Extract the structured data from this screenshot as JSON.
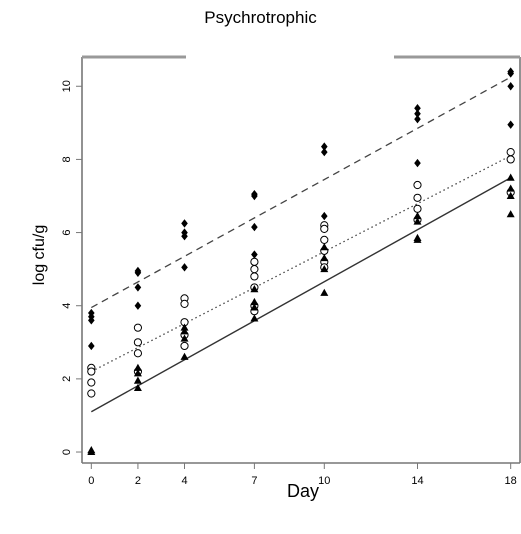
{
  "chart_data": {
    "type": "scatter",
    "title": "Psychrotrophic",
    "xlabel": "Day",
    "ylabel": "log cfu/g",
    "x_ticks": [
      0,
      2,
      4,
      7,
      10,
      14,
      18
    ],
    "y_ticks": [
      0,
      2,
      4,
      6,
      8,
      10
    ],
    "xlim": [
      -0.4,
      18.4
    ],
    "ylim": [
      -0.3,
      10.8
    ],
    "series": [
      {
        "marker": "filled-diamond",
        "line": "dashed",
        "color": "#000000",
        "fit": [
          [
            0,
            3.95
          ],
          [
            18,
            10.25
          ]
        ],
        "points": [
          [
            0,
            3.8
          ],
          [
            0,
            3.7
          ],
          [
            0,
            3.6
          ],
          [
            0,
            2.9
          ],
          [
            2,
            4.95
          ],
          [
            2,
            4.9
          ],
          [
            2,
            4.5
          ],
          [
            2,
            4.0
          ],
          [
            4,
            6.25
          ],
          [
            4,
            6.0
          ],
          [
            4,
            5.9
          ],
          [
            4,
            5.05
          ],
          [
            7,
            7.05
          ],
          [
            7,
            7.0
          ],
          [
            7,
            6.15
          ],
          [
            7,
            5.4
          ],
          [
            10,
            8.35
          ],
          [
            10,
            8.2
          ],
          [
            10,
            6.45
          ],
          [
            10,
            6.1
          ],
          [
            14,
            9.4
          ],
          [
            14,
            9.25
          ],
          [
            14,
            9.1
          ],
          [
            14,
            7.9
          ],
          [
            18,
            10.4
          ],
          [
            18,
            10.35
          ],
          [
            18,
            10.0
          ],
          [
            18,
            8.95
          ]
        ]
      },
      {
        "marker": "open-circle",
        "line": "dotted",
        "color": "#000000",
        "fit": [
          [
            0,
            2.2
          ],
          [
            18,
            8.1
          ]
        ],
        "points": [
          [
            0,
            2.3
          ],
          [
            0,
            2.2
          ],
          [
            0,
            1.9
          ],
          [
            0,
            1.6
          ],
          [
            2,
            3.4
          ],
          [
            2,
            3.0
          ],
          [
            2,
            2.7
          ],
          [
            2,
            2.2
          ],
          [
            4,
            4.2
          ],
          [
            4,
            4.05
          ],
          [
            4,
            3.55
          ],
          [
            4,
            3.2
          ],
          [
            4,
            2.9
          ],
          [
            7,
            5.2
          ],
          [
            7,
            5.0
          ],
          [
            7,
            4.8
          ],
          [
            7,
            4.5
          ],
          [
            7,
            4.0
          ],
          [
            7,
            3.85
          ],
          [
            10,
            6.2
          ],
          [
            10,
            6.1
          ],
          [
            10,
            5.8
          ],
          [
            10,
            5.5
          ],
          [
            10,
            5.2
          ],
          [
            10,
            5.05
          ],
          [
            14,
            7.3
          ],
          [
            14,
            6.95
          ],
          [
            14,
            6.65
          ],
          [
            14,
            6.35
          ],
          [
            18,
            8.2
          ],
          [
            18,
            8.0
          ],
          [
            18,
            7.1
          ]
        ]
      },
      {
        "marker": "filled-triangle",
        "line": "solid",
        "color": "#000000",
        "fit": [
          [
            0,
            1.1
          ],
          [
            18,
            7.5
          ]
        ],
        "points": [
          [
            0,
            0.05
          ],
          [
            0,
            0.0
          ],
          [
            2,
            2.3
          ],
          [
            2,
            2.15
          ],
          [
            2,
            1.95
          ],
          [
            2,
            1.75
          ],
          [
            4,
            3.4
          ],
          [
            4,
            3.3
          ],
          [
            4,
            3.1
          ],
          [
            4,
            2.6
          ],
          [
            7,
            4.45
          ],
          [
            7,
            4.1
          ],
          [
            7,
            3.95
          ],
          [
            7,
            3.65
          ],
          [
            10,
            5.6
          ],
          [
            10,
            5.3
          ],
          [
            10,
            5.0
          ],
          [
            10,
            4.35
          ],
          [
            14,
            6.45
          ],
          [
            14,
            6.3
          ],
          [
            14,
            5.85
          ],
          [
            14,
            5.8
          ],
          [
            18,
            7.5
          ],
          [
            18,
            7.2
          ],
          [
            18,
            7.0
          ],
          [
            18,
            6.5
          ]
        ]
      }
    ]
  }
}
